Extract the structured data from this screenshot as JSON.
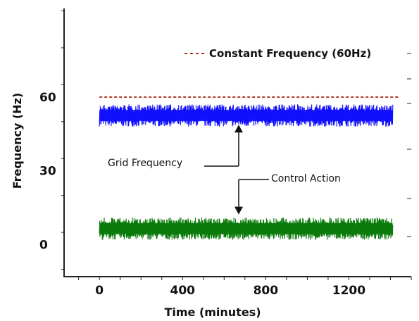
{
  "chart_data": {
    "type": "line",
    "title": "",
    "xlabel": "Time (minutes)",
    "ylabel": "Frequency (Hz)",
    "xlim": [
      -170,
      1500
    ],
    "ylim": [
      -13,
      96
    ],
    "x_ticks": [
      0,
      400,
      800,
      1200
    ],
    "x_tick_labels": [
      "0",
      "400",
      "800",
      "1200"
    ],
    "y_ticks": [
      0,
      30,
      60
    ],
    "y_tick_labels": [
      "0",
      "30",
      "60"
    ],
    "grid": false,
    "legend_position": "top-right",
    "series": [
      {
        "name": "Constant Frequency (60Hz)",
        "style": "dashed",
        "color": "#b03020",
        "x": [
          0,
          1440
        ],
        "y": [
          60,
          60
        ]
      },
      {
        "name": "",
        "style": "noisy-band",
        "color": "#1010ff",
        "x_range": [
          0,
          1410
        ],
        "y_min": 48,
        "y_max": 57
      },
      {
        "name": "",
        "style": "noisy-band",
        "color": "#0a7a0a",
        "x_range": [
          0,
          1410
        ],
        "y_min": 2,
        "y_max": 11
      }
    ],
    "annotations": [
      {
        "text": "Grid Frequency",
        "arrow": "up",
        "x": 670,
        "y_from": 32,
        "y_to": 49
      },
      {
        "text": "Control Action",
        "arrow": "down",
        "x": 670,
        "y_from": 28,
        "y_to": 12
      }
    ]
  }
}
